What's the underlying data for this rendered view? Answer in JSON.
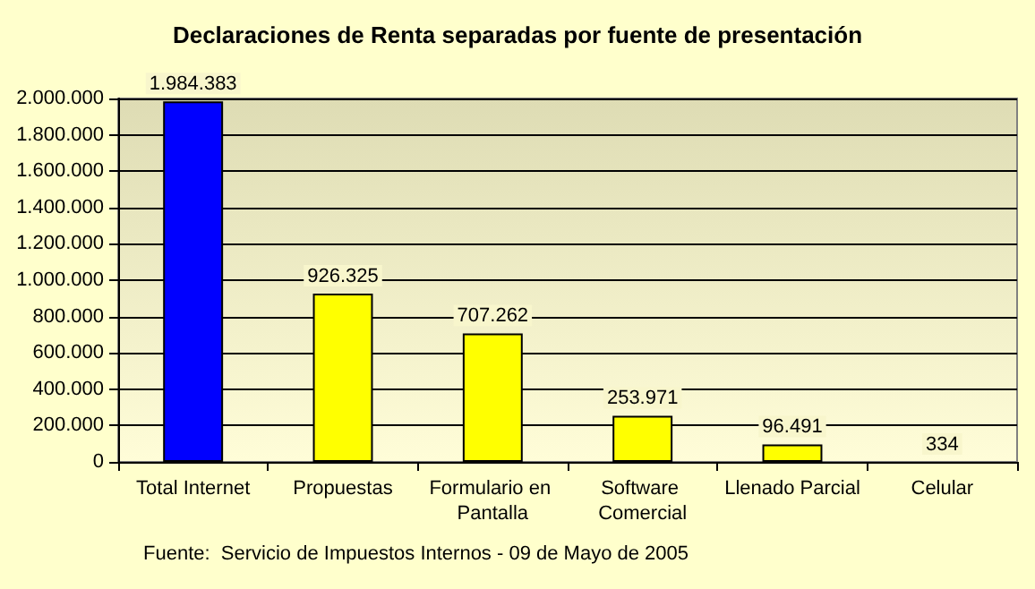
{
  "chart_data": {
    "type": "bar",
    "title": "Declaraciones de Renta separadas por fuente de presentación",
    "categories": [
      "Total Internet",
      "Propuestas",
      "Formulario en Pantalla",
      "Software Comercial",
      "Llenado Parcial",
      "Celular"
    ],
    "values": [
      1984383,
      926325,
      707262,
      253971,
      96491,
      334
    ],
    "colors": [
      "#0000ff",
      "#ffff00",
      "#ffff00",
      "#ffff00",
      "#ffff00",
      "#ffff00"
    ],
    "value_labels": [
      "1.984.383",
      "926.325",
      "707.262",
      "253.971",
      "96.491",
      "334"
    ],
    "ylim": [
      0,
      2000000
    ],
    "yticks": [
      {
        "value": 0,
        "label": "0"
      },
      {
        "value": 200000,
        "label": "200.000"
      },
      {
        "value": 400000,
        "label": "400.000"
      },
      {
        "value": 600000,
        "label": "600.000"
      },
      {
        "value": 800000,
        "label": "800.000"
      },
      {
        "value": 1000000,
        "label": "1.000.000"
      },
      {
        "value": 1200000,
        "label": "1.200.000"
      },
      {
        "value": 1400000,
        "label": "1.400.000"
      },
      {
        "value": 1600000,
        "label": "1.600.000"
      },
      {
        "value": 1800000,
        "label": "1.800.000"
      },
      {
        "value": 2000000,
        "label": "2.000.000"
      }
    ],
    "grid": "y",
    "annotations": [
      "Fuente:  Servicio de Impuestos Internos - 09 de Mayo de 2005"
    ]
  }
}
